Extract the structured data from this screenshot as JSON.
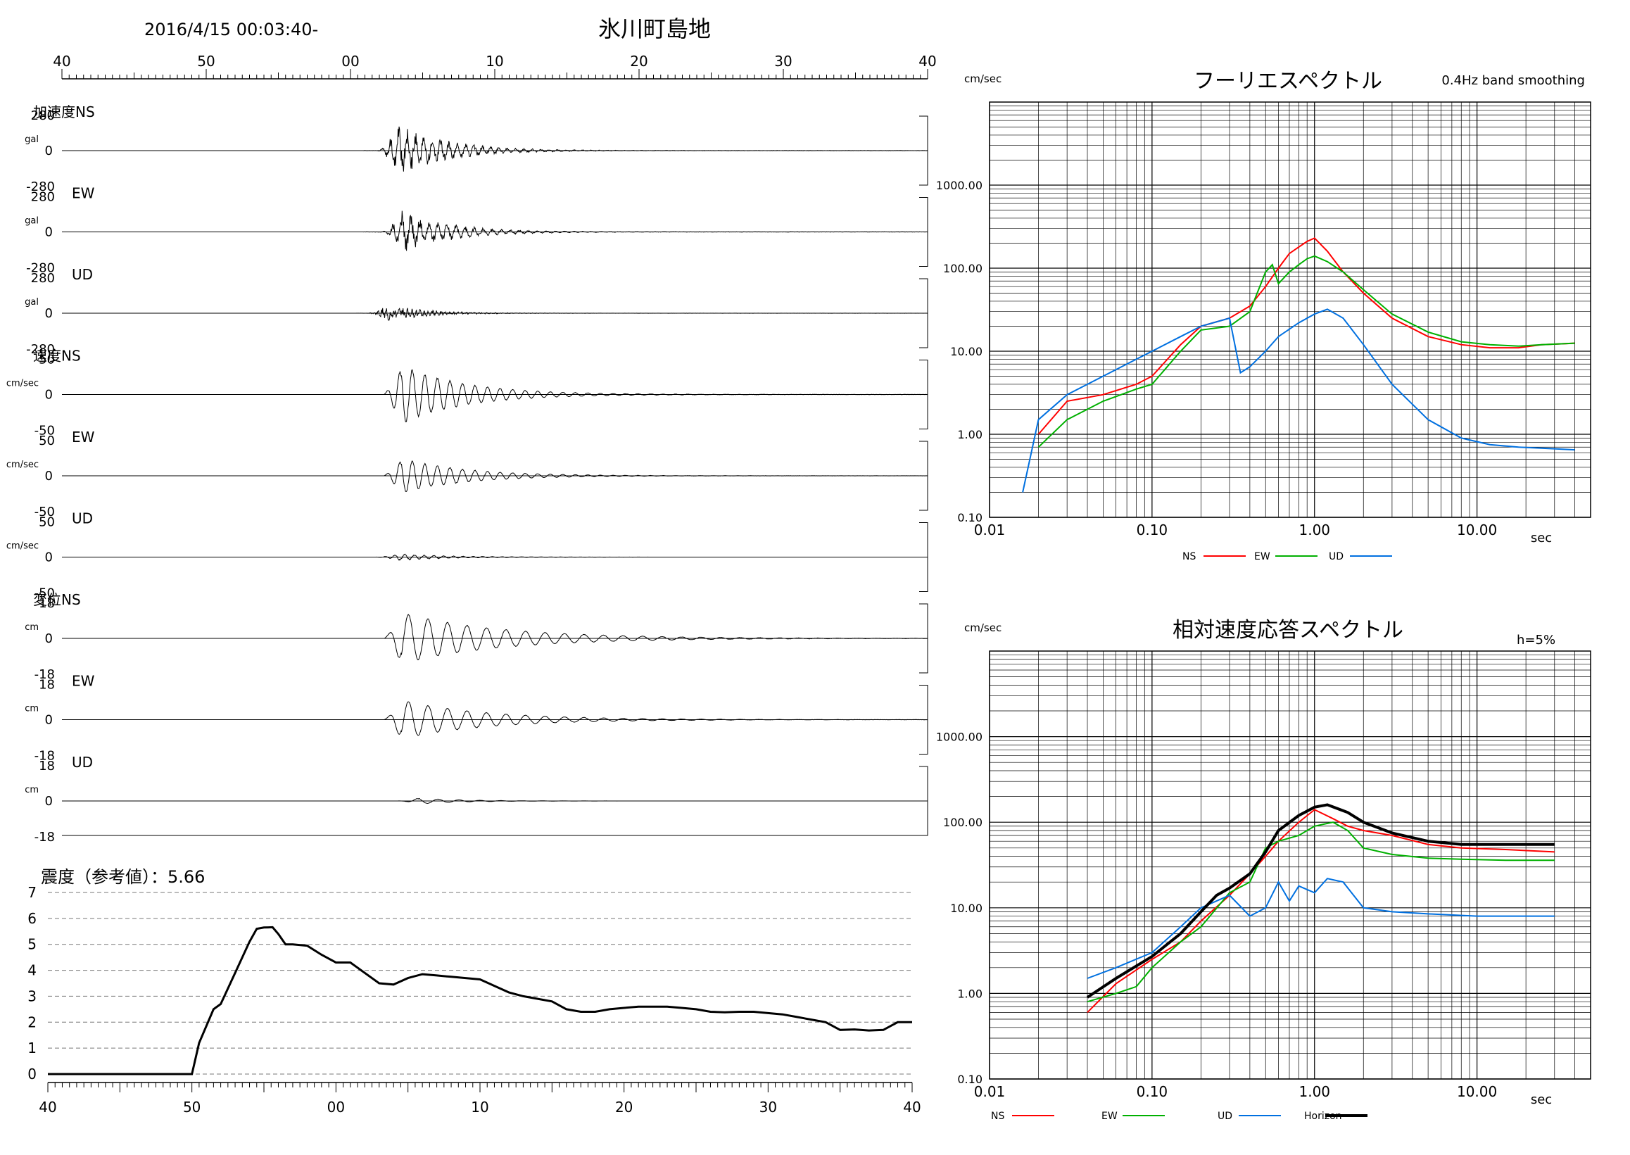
{
  "header": {
    "datetime": "2016/4/15 00:03:40-",
    "station": "氷川町島地"
  },
  "time_axis_labels": [
    "40",
    "50",
    "00",
    "10",
    "20",
    "30",
    "40"
  ],
  "panels": [
    {
      "section": "加速度",
      "comp": "NS",
      "unit": "gal",
      "max": "280",
      "zero": "0",
      "min": "-280",
      "amp": 0.95,
      "start": 0.19,
      "peak": 0.24,
      "decay": 0.07,
      "period": 0.012,
      "noise": 0.35,
      "seed": 1
    },
    {
      "comp": "EW",
      "unit": "gal",
      "max": "280",
      "zero": "0",
      "min": "-280",
      "amp": 0.75,
      "start": 0.19,
      "peak": 0.245,
      "decay": 0.07,
      "period": 0.013,
      "noise": 0.35,
      "seed": 2
    },
    {
      "comp": "UD",
      "unit": "gal",
      "max": "280",
      "zero": "0",
      "min": "-280",
      "amp": 0.3,
      "start": 0.18,
      "peak": 0.225,
      "decay": 0.06,
      "period": 0.006,
      "noise": 0.6,
      "seed": 3
    },
    {
      "section": "速度",
      "comp": "NS",
      "unit": "cm/sec",
      "max": "50",
      "zero": "0",
      "min": "-50",
      "amp": 1.0,
      "start": 0.22,
      "peak": 0.245,
      "decay": 0.09,
      "period": 0.018,
      "noise": 0.05,
      "seed": 4
    },
    {
      "comp": "EW",
      "unit": "cm/sec",
      "max": "50",
      "zero": "0",
      "min": "-50",
      "amp": 0.6,
      "start": 0.22,
      "peak": 0.245,
      "decay": 0.09,
      "period": 0.018,
      "noise": 0.05,
      "seed": 5
    },
    {
      "comp": "UD",
      "unit": "cm/sec",
      "max": "50",
      "zero": "0",
      "min": "-50",
      "amp": 0.12,
      "start": 0.19,
      "peak": 0.24,
      "decay": 0.07,
      "period": 0.014,
      "noise": 0.2,
      "seed": 6
    },
    {
      "section": "変位",
      "comp": "NS",
      "unit": "cm",
      "max": "18",
      "zero": "0",
      "min": "-18",
      "amp": 0.85,
      "start": 0.22,
      "peak": 0.245,
      "decay": 0.14,
      "period": 0.028,
      "noise": 0.02,
      "seed": 7
    },
    {
      "comp": "EW",
      "unit": "cm",
      "max": "18",
      "zero": "0",
      "min": "-18",
      "amp": 0.65,
      "start": 0.22,
      "peak": 0.245,
      "decay": 0.12,
      "period": 0.028,
      "noise": 0.02,
      "seed": 8
    },
    {
      "comp": "UD",
      "unit": "cm",
      "max": "18",
      "zero": "0",
      "min": "-18",
      "amp": 0.1,
      "start": 0.2,
      "peak": 0.27,
      "decay": 0.06,
      "period": 0.03,
      "noise": 0.05,
      "seed": 9
    }
  ],
  "intensity": {
    "label": "震度（参考値）：5.66"
  },
  "chart_data": [
    {
      "type": "line",
      "title": "震度（参考値）：5.66",
      "x_tick_labels": [
        "40",
        "50",
        "00",
        "10",
        "20",
        "30",
        "40"
      ],
      "xlim": [
        0,
        60
      ],
      "ylim": [
        0,
        7
      ],
      "y_ticks": [
        "0",
        "1",
        "2",
        "3",
        "4",
        "5",
        "6",
        "7"
      ],
      "series": [
        {
          "x": [
            0,
            10,
            10.5,
            11.5,
            12,
            13,
            14,
            14.5,
            15,
            15.6,
            16,
            16.5,
            17,
            18,
            19,
            20,
            21,
            22,
            23,
            24,
            25,
            26,
            27,
            28,
            29,
            30,
            31,
            32,
            33,
            34,
            35,
            36,
            37,
            38,
            39,
            40,
            41,
            42,
            43,
            44,
            45,
            46,
            47,
            48,
            49,
            50,
            51,
            52,
            53,
            54,
            55,
            56,
            57,
            58,
            59,
            60
          ],
          "y": [
            0,
            0,
            1.2,
            2.5,
            2.7,
            3.9,
            5.1,
            5.6,
            5.65,
            5.66,
            5.4,
            5.0,
            5.0,
            4.95,
            4.6,
            4.3,
            4.3,
            3.9,
            3.5,
            3.45,
            3.7,
            3.85,
            3.8,
            3.75,
            3.7,
            3.65,
            3.4,
            3.15,
            3.0,
            2.9,
            2.8,
            2.5,
            2.4,
            2.4,
            2.5,
            2.55,
            2.6,
            2.6,
            2.6,
            2.55,
            2.5,
            2.4,
            2.38,
            2.4,
            2.4,
            2.35,
            2.3,
            2.2,
            2.1,
            2.0,
            1.7,
            1.72,
            1.68,
            1.7,
            2.0,
            2.0
          ]
        }
      ]
    },
    {
      "type": "line",
      "title": "フーリエスペクトル",
      "subtitle": "0.4Hz band smoothing",
      "xlabel": "sec",
      "ylabel": "cm/sec",
      "x_scale": "log",
      "y_scale": "log",
      "xlim": [
        0.01,
        50
      ],
      "ylim": [
        0.1,
        10000
      ],
      "x_tick_labels": [
        "0.01",
        "0.10",
        "1.00",
        "10.00"
      ],
      "y_tick_labels": [
        "0.10",
        "1.00",
        "10.00",
        "100.00",
        "1000.00"
      ],
      "legend": "bottom-center",
      "series": [
        {
          "name": "NS",
          "color": "#ff0000",
          "x": [
            0.02,
            0.03,
            0.05,
            0.08,
            0.1,
            0.15,
            0.2,
            0.3,
            0.4,
            0.5,
            0.6,
            0.7,
            0.8,
            0.9,
            1.0,
            1.2,
            1.5,
            2.0,
            3.0,
            5.0,
            8.0,
            12.0,
            18.0,
            25.0,
            40.0
          ],
          "y": [
            1.0,
            2.5,
            3.0,
            4.0,
            5.0,
            12.0,
            20.0,
            25.0,
            35.0,
            60.0,
            100.0,
            150.0,
            180.0,
            210.0,
            230.0,
            160.0,
            90.0,
            50.0,
            25.0,
            15.0,
            12.0,
            11.0,
            11.0,
            12.0,
            12.5
          ]
        },
        {
          "name": "EW",
          "color": "#00b000",
          "x": [
            0.02,
            0.03,
            0.05,
            0.08,
            0.1,
            0.15,
            0.2,
            0.3,
            0.4,
            0.5,
            0.55,
            0.6,
            0.7,
            0.8,
            0.9,
            1.0,
            1.2,
            1.5,
            2.0,
            3.0,
            5.0,
            8.0,
            12.0,
            18.0,
            25.0,
            40.0
          ],
          "y": [
            0.7,
            1.5,
            2.5,
            3.5,
            4.0,
            10.0,
            18.0,
            20.0,
            30.0,
            90.0,
            110.0,
            65.0,
            90.0,
            110.0,
            130.0,
            140.0,
            120.0,
            90.0,
            55.0,
            28.0,
            17.0,
            13.0,
            12.0,
            11.5,
            12.0,
            12.5
          ]
        },
        {
          "name": "UD",
          "color": "#0070e0",
          "x": [
            0.016,
            0.02,
            0.03,
            0.05,
            0.08,
            0.1,
            0.15,
            0.2,
            0.3,
            0.35,
            0.4,
            0.5,
            0.6,
            0.8,
            1.0,
            1.2,
            1.5,
            2.0,
            3.0,
            5.0,
            8.0,
            12.0,
            18.0,
            25.0,
            40.0
          ],
          "y": [
            0.2,
            1.5,
            3.0,
            5.0,
            8.0,
            10.0,
            15.0,
            20.0,
            25.0,
            5.5,
            6.5,
            10.0,
            15.0,
            22.0,
            28.0,
            32.0,
            25.0,
            12.0,
            4.0,
            1.5,
            0.9,
            0.75,
            0.7,
            0.68,
            0.65
          ]
        }
      ]
    },
    {
      "type": "line",
      "title": "相対速度応答スペクトル",
      "subtitle": "h=5%",
      "xlabel": "sec",
      "ylabel": "cm/sec",
      "x_scale": "log",
      "y_scale": "log",
      "xlim": [
        0.01,
        50
      ],
      "ylim": [
        0.1,
        10000
      ],
      "x_tick_labels": [
        "0.01",
        "0.10",
        "1.00",
        "10.00"
      ],
      "y_tick_labels": [
        "0.10",
        "1.00",
        "10.00",
        "100.00",
        "1000.00"
      ],
      "legend": "bottom",
      "series": [
        {
          "name": "NS",
          "color": "#ff0000",
          "x": [
            0.04,
            0.06,
            0.1,
            0.15,
            0.2,
            0.3,
            0.4,
            0.5,
            0.6,
            0.8,
            1.0,
            1.3,
            1.6,
            2.0,
            3.0,
            5.0,
            8.0,
            15.0,
            30.0
          ],
          "y": [
            0.6,
            1.3,
            2.5,
            4.0,
            7.0,
            14.0,
            25.0,
            40.0,
            60.0,
            100.0,
            140.0,
            110.0,
            90.0,
            80.0,
            70.0,
            55.0,
            50.0,
            48.0,
            45.0
          ]
        },
        {
          "name": "EW",
          "color": "#00b000",
          "x": [
            0.04,
            0.06,
            0.08,
            0.1,
            0.15,
            0.2,
            0.3,
            0.4,
            0.5,
            0.6,
            0.8,
            1.0,
            1.3,
            1.6,
            2.0,
            3.0,
            5.0,
            8.0,
            15.0,
            30.0
          ],
          "y": [
            0.8,
            1.0,
            1.2,
            2.0,
            4.0,
            6.0,
            15.0,
            20.0,
            50.0,
            60.0,
            70.0,
            90.0,
            100.0,
            80.0,
            50.0,
            42.0,
            38.0,
            37.0,
            36.0,
            36.0
          ]
        },
        {
          "name": "UD",
          "color": "#0070e0",
          "x": [
            0.04,
            0.06,
            0.1,
            0.15,
            0.2,
            0.3,
            0.4,
            0.5,
            0.6,
            0.7,
            0.8,
            1.0,
            1.2,
            1.5,
            2.0,
            3.0,
            5.0,
            10.0,
            30.0
          ],
          "y": [
            1.5,
            2.0,
            3.0,
            6.0,
            10.0,
            14.0,
            8.0,
            10.0,
            20.0,
            12.0,
            18.0,
            15.0,
            22.0,
            20.0,
            10.0,
            9.0,
            8.5,
            8.0,
            8.0
          ]
        },
        {
          "name": "Horizon",
          "color": "#000000",
          "x": [
            0.04,
            0.06,
            0.1,
            0.15,
            0.2,
            0.25,
            0.3,
            0.4,
            0.5,
            0.6,
            0.8,
            1.0,
            1.2,
            1.6,
            2.0,
            3.0,
            5.0,
            8.0,
            15.0,
            30.0
          ],
          "y": [
            0.9,
            1.5,
            2.7,
            5.0,
            9.0,
            14.0,
            17.0,
            25.0,
            45.0,
            80.0,
            120.0,
            150.0,
            160.0,
            130.0,
            100.0,
            75.0,
            60.0,
            55.0,
            55.0,
            55.0
          ]
        }
      ]
    }
  ]
}
